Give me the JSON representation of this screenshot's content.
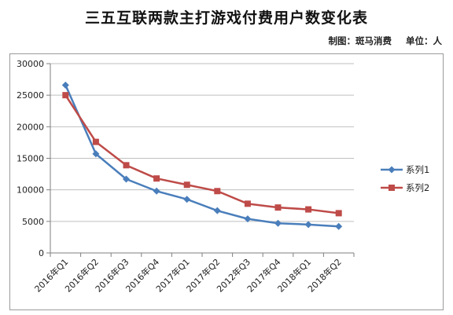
{
  "title": "三五互联两款主打游戏付费用户数变化表",
  "credit": {
    "maker": "制图：斑马消费",
    "unit": "单位：人"
  },
  "colors": {
    "series1": "#4a7ebb",
    "series2": "#be4b48",
    "grid": "#bfbfbf",
    "axis": "#7f7f7f"
  },
  "chart_data": {
    "type": "line",
    "title": "三五互联两款主打游戏付费用户数变化表",
    "xlabel": "",
    "ylabel": "",
    "ylim": [
      0,
      30000
    ],
    "yticks": [
      0,
      5000,
      10000,
      15000,
      20000,
      25000,
      30000
    ],
    "grid": true,
    "legend": "right",
    "categories": [
      "2016年Q1",
      "2016年Q2",
      "2016年Q3",
      "2016年Q4",
      "2017年Q1",
      "2017年Q2",
      "2012年Q3",
      "2017年Q4",
      "2018年Q1",
      "2018年Q2"
    ],
    "series": [
      {
        "name": "系列1",
        "marker": "diamond",
        "values": [
          26600,
          15700,
          11700,
          9800,
          8500,
          6700,
          5400,
          4700,
          4500,
          4200
        ]
      },
      {
        "name": "系列2",
        "marker": "square",
        "values": [
          25000,
          17600,
          13900,
          11800,
          10800,
          9800,
          7800,
          7200,
          6900,
          6300
        ]
      }
    ]
  }
}
